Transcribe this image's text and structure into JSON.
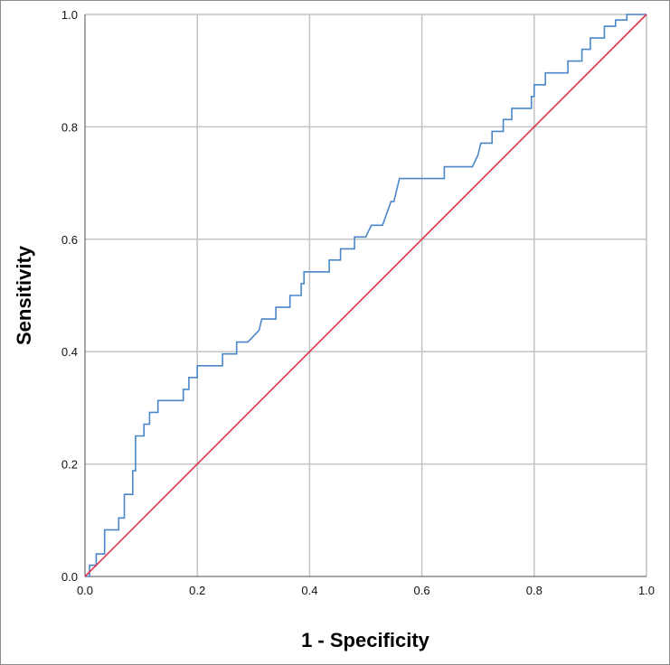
{
  "chart_data": {
    "type": "line",
    "title": "",
    "xlabel": "1 - Specificity",
    "ylabel": "Sensitivity",
    "xlim": [
      0.0,
      1.0
    ],
    "ylim": [
      0.0,
      1.0
    ],
    "x_ticks": [
      "0.0",
      "0.2",
      "0.4",
      "0.6",
      "0.8",
      "1.0"
    ],
    "y_ticks": [
      "0.0",
      "0.2",
      "0.4",
      "0.6",
      "0.8",
      "1.0"
    ],
    "grid": true,
    "legend": "none",
    "series": [
      {
        "color": "#4a86c8",
        "style": "step",
        "points": [
          [
            0.0,
            0.0
          ],
          [
            0.008,
            0.0
          ],
          [
            0.008,
            0.02
          ],
          [
            0.02,
            0.02
          ],
          [
            0.02,
            0.04
          ],
          [
            0.035,
            0.04
          ],
          [
            0.035,
            0.083
          ],
          [
            0.06,
            0.083
          ],
          [
            0.06,
            0.104
          ],
          [
            0.07,
            0.104
          ],
          [
            0.07,
            0.146
          ],
          [
            0.085,
            0.146
          ],
          [
            0.085,
            0.188
          ],
          [
            0.09,
            0.188
          ],
          [
            0.09,
            0.25
          ],
          [
            0.105,
            0.25
          ],
          [
            0.105,
            0.271
          ],
          [
            0.115,
            0.271
          ],
          [
            0.115,
            0.292
          ],
          [
            0.13,
            0.292
          ],
          [
            0.13,
            0.313
          ],
          [
            0.175,
            0.313
          ],
          [
            0.175,
            0.333
          ],
          [
            0.185,
            0.333
          ],
          [
            0.185,
            0.354
          ],
          [
            0.2,
            0.354
          ],
          [
            0.2,
            0.375
          ],
          [
            0.245,
            0.375
          ],
          [
            0.245,
            0.396
          ],
          [
            0.27,
            0.396
          ],
          [
            0.27,
            0.417
          ],
          [
            0.29,
            0.417
          ],
          [
            0.31,
            0.438
          ],
          [
            0.315,
            0.458
          ],
          [
            0.34,
            0.458
          ],
          [
            0.34,
            0.479
          ],
          [
            0.365,
            0.479
          ],
          [
            0.365,
            0.5
          ],
          [
            0.385,
            0.5
          ],
          [
            0.385,
            0.521
          ],
          [
            0.39,
            0.521
          ],
          [
            0.39,
            0.542
          ],
          [
            0.435,
            0.542
          ],
          [
            0.435,
            0.563
          ],
          [
            0.455,
            0.563
          ],
          [
            0.455,
            0.583
          ],
          [
            0.48,
            0.583
          ],
          [
            0.48,
            0.604
          ],
          [
            0.5,
            0.604
          ],
          [
            0.51,
            0.625
          ],
          [
            0.53,
            0.625
          ],
          [
            0.545,
            0.667
          ],
          [
            0.55,
            0.667
          ],
          [
            0.56,
            0.708
          ],
          [
            0.64,
            0.708
          ],
          [
            0.64,
            0.729
          ],
          [
            0.69,
            0.729
          ],
          [
            0.7,
            0.75
          ],
          [
            0.705,
            0.771
          ],
          [
            0.725,
            0.771
          ],
          [
            0.725,
            0.792
          ],
          [
            0.745,
            0.792
          ],
          [
            0.745,
            0.813
          ],
          [
            0.76,
            0.813
          ],
          [
            0.76,
            0.833
          ],
          [
            0.795,
            0.833
          ],
          [
            0.795,
            0.854
          ],
          [
            0.8,
            0.854
          ],
          [
            0.8,
            0.875
          ],
          [
            0.82,
            0.875
          ],
          [
            0.82,
            0.896
          ],
          [
            0.86,
            0.896
          ],
          [
            0.86,
            0.917
          ],
          [
            0.885,
            0.917
          ],
          [
            0.885,
            0.938
          ],
          [
            0.9,
            0.938
          ],
          [
            0.9,
            0.958
          ],
          [
            0.925,
            0.958
          ],
          [
            0.925,
            0.979
          ],
          [
            0.945,
            0.979
          ],
          [
            0.945,
            0.99
          ],
          [
            0.965,
            0.99
          ],
          [
            0.965,
            1.0
          ],
          [
            1.0,
            1.0
          ]
        ]
      },
      {
        "color": "#e0324b",
        "style": "line",
        "points": [
          [
            0.0,
            0.0
          ],
          [
            1.0,
            1.0
          ]
        ]
      }
    ]
  }
}
